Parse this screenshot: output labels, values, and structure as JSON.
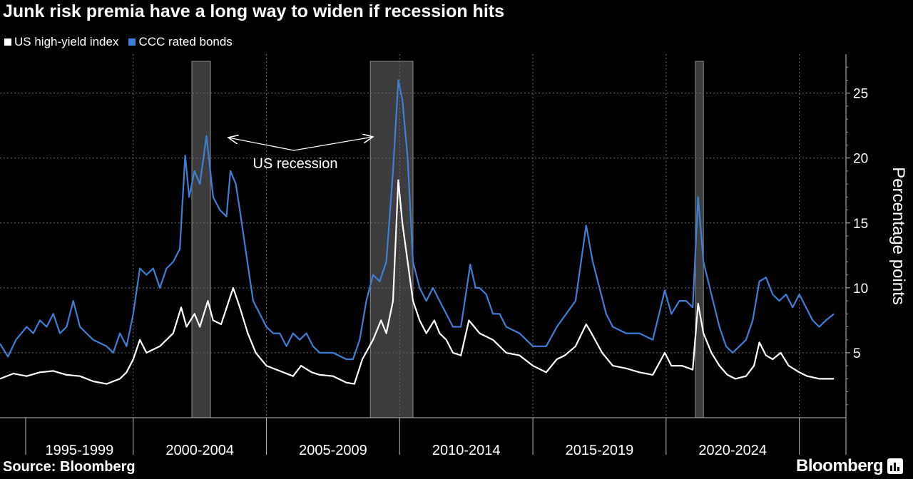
{
  "header": {
    "title": "Junk risk premia have a long way to widen if recession hits"
  },
  "footer": {
    "source": "Source: Bloomberg",
    "brand": "Bloomberg"
  },
  "colors": {
    "background": "#000000",
    "hy": "#ffffff",
    "ccc": "#3d7fd6",
    "recession": "#3c3c3c",
    "grid": "#6a6a6a"
  },
  "chart_data": {
    "type": "line",
    "title": "Junk risk premia have a long way to widen if recession hits",
    "ylabel": "Percentage points",
    "ylim": [
      0,
      28
    ],
    "yticks": [
      5,
      10,
      15,
      20,
      25
    ],
    "xlim": [
      1994.0,
      2025.75
    ],
    "x_tick_labels": [
      "1995-1999",
      "2000-2004",
      "2005-2009",
      "2010-2014",
      "2015-2019",
      "2020-2024"
    ],
    "grid": true,
    "legend": "top-left",
    "recessions": [
      {
        "start": 2001.2,
        "end": 2001.9
      },
      {
        "start": 2007.9,
        "end": 2009.5
      },
      {
        "start": 2020.1,
        "end": 2020.4
      }
    ],
    "annotation": "US recession",
    "series": [
      {
        "name": "US high-yield index",
        "color": "#ffffff",
        "points": [
          [
            1994.0,
            3.0
          ],
          [
            1994.5,
            3.4
          ],
          [
            1995.0,
            3.2
          ],
          [
            1995.5,
            3.5
          ],
          [
            1996.0,
            3.6
          ],
          [
            1996.5,
            3.3
          ],
          [
            1997.0,
            3.2
          ],
          [
            1997.5,
            2.8
          ],
          [
            1998.0,
            2.6
          ],
          [
            1998.5,
            3.0
          ],
          [
            1998.75,
            3.5
          ],
          [
            1999.0,
            4.5
          ],
          [
            1999.25,
            6.0
          ],
          [
            1999.5,
            5.0
          ],
          [
            2000.0,
            5.5
          ],
          [
            2000.5,
            6.5
          ],
          [
            2000.8,
            8.5
          ],
          [
            2001.0,
            7.0
          ],
          [
            2001.3,
            8.0
          ],
          [
            2001.5,
            7.0
          ],
          [
            2001.8,
            9.0
          ],
          [
            2002.0,
            7.5
          ],
          [
            2002.3,
            7.2
          ],
          [
            2002.75,
            10.0
          ],
          [
            2003.0,
            8.5
          ],
          [
            2003.3,
            6.5
          ],
          [
            2003.6,
            5.0
          ],
          [
            2004.0,
            4.0
          ],
          [
            2004.5,
            3.6
          ],
          [
            2005.0,
            3.2
          ],
          [
            2005.3,
            4.0
          ],
          [
            2005.7,
            3.5
          ],
          [
            2006.0,
            3.3
          ],
          [
            2006.5,
            3.2
          ],
          [
            2007.0,
            2.7
          ],
          [
            2007.3,
            2.6
          ],
          [
            2007.6,
            4.5
          ],
          [
            2008.0,
            6.0
          ],
          [
            2008.3,
            7.5
          ],
          [
            2008.5,
            6.5
          ],
          [
            2008.75,
            9.0
          ],
          [
            2008.95,
            18.3
          ],
          [
            2009.1,
            15.0
          ],
          [
            2009.3,
            12.0
          ],
          [
            2009.5,
            9.0
          ],
          [
            2009.75,
            7.5
          ],
          [
            2010.0,
            6.5
          ],
          [
            2010.3,
            7.5
          ],
          [
            2010.5,
            6.5
          ],
          [
            2010.75,
            6.0
          ],
          [
            2011.0,
            5.0
          ],
          [
            2011.3,
            4.8
          ],
          [
            2011.6,
            7.5
          ],
          [
            2011.8,
            7.0
          ],
          [
            2012.0,
            6.5
          ],
          [
            2012.5,
            6.0
          ],
          [
            2013.0,
            5.0
          ],
          [
            2013.5,
            4.8
          ],
          [
            2014.0,
            4.0
          ],
          [
            2014.5,
            3.5
          ],
          [
            2014.9,
            4.5
          ],
          [
            2015.2,
            4.8
          ],
          [
            2015.6,
            5.5
          ],
          [
            2016.0,
            7.2
          ],
          [
            2016.2,
            6.5
          ],
          [
            2016.6,
            5.0
          ],
          [
            2017.0,
            4.0
          ],
          [
            2017.5,
            3.8
          ],
          [
            2018.0,
            3.5
          ],
          [
            2018.5,
            3.3
          ],
          [
            2018.95,
            5.0
          ],
          [
            2019.2,
            4.0
          ],
          [
            2019.6,
            4.0
          ],
          [
            2020.0,
            3.7
          ],
          [
            2020.2,
            8.8
          ],
          [
            2020.4,
            6.5
          ],
          [
            2020.7,
            5.0
          ],
          [
            2021.0,
            4.0
          ],
          [
            2021.3,
            3.3
          ],
          [
            2021.6,
            3.0
          ],
          [
            2022.0,
            3.2
          ],
          [
            2022.3,
            4.0
          ],
          [
            2022.5,
            5.8
          ],
          [
            2022.75,
            4.8
          ],
          [
            2023.0,
            4.5
          ],
          [
            2023.3,
            5.0
          ],
          [
            2023.6,
            4.0
          ],
          [
            2024.0,
            3.5
          ],
          [
            2024.3,
            3.2
          ],
          [
            2024.75,
            3.0
          ],
          [
            2025.3,
            3.0
          ]
        ]
      },
      {
        "name": "CCC rated bonds",
        "color": "#3d7fd6",
        "points": [
          [
            1994.0,
            5.7
          ],
          [
            1994.3,
            4.7
          ],
          [
            1994.6,
            6.0
          ],
          [
            1995.0,
            7.0
          ],
          [
            1995.25,
            6.5
          ],
          [
            1995.5,
            7.5
          ],
          [
            1995.75,
            7.0
          ],
          [
            1996.0,
            8.0
          ],
          [
            1996.25,
            6.5
          ],
          [
            1996.5,
            7.0
          ],
          [
            1996.75,
            9.0
          ],
          [
            1997.0,
            7.0
          ],
          [
            1997.25,
            6.5
          ],
          [
            1997.5,
            6.0
          ],
          [
            1998.0,
            5.5
          ],
          [
            1998.25,
            5.0
          ],
          [
            1998.5,
            6.5
          ],
          [
            1998.75,
            5.5
          ],
          [
            1999.0,
            8.0
          ],
          [
            1999.25,
            11.5
          ],
          [
            1999.5,
            11.0
          ],
          [
            1999.75,
            11.5
          ],
          [
            2000.0,
            10.0
          ],
          [
            2000.25,
            11.5
          ],
          [
            2000.5,
            12.0
          ],
          [
            2000.75,
            13.0
          ],
          [
            2000.95,
            20.2
          ],
          [
            2001.1,
            17.0
          ],
          [
            2001.3,
            19.0
          ],
          [
            2001.5,
            18.0
          ],
          [
            2001.75,
            21.7
          ],
          [
            2002.0,
            17.0
          ],
          [
            2002.25,
            16.0
          ],
          [
            2002.5,
            15.5
          ],
          [
            2002.65,
            19.0
          ],
          [
            2002.85,
            18.0
          ],
          [
            2003.0,
            16.0
          ],
          [
            2003.25,
            12.5
          ],
          [
            2003.5,
            9.0
          ],
          [
            2003.75,
            8.0
          ],
          [
            2004.0,
            7.0
          ],
          [
            2004.25,
            6.5
          ],
          [
            2004.5,
            6.5
          ],
          [
            2004.75,
            5.5
          ],
          [
            2005.0,
            6.5
          ],
          [
            2005.25,
            6.0
          ],
          [
            2005.5,
            6.5
          ],
          [
            2005.75,
            5.5
          ],
          [
            2006.0,
            5.0
          ],
          [
            2006.5,
            5.0
          ],
          [
            2007.0,
            4.5
          ],
          [
            2007.25,
            4.5
          ],
          [
            2007.5,
            6.0
          ],
          [
            2007.75,
            9.0
          ],
          [
            2008.0,
            11.0
          ],
          [
            2008.25,
            10.5
          ],
          [
            2008.5,
            12.0
          ],
          [
            2008.75,
            19.0
          ],
          [
            2008.95,
            26.0
          ],
          [
            2009.1,
            24.5
          ],
          [
            2009.3,
            20.0
          ],
          [
            2009.5,
            12.0
          ],
          [
            2009.75,
            10.0
          ],
          [
            2010.0,
            9.0
          ],
          [
            2010.25,
            10.0
          ],
          [
            2010.5,
            9.0
          ],
          [
            2010.75,
            8.0
          ],
          [
            2011.0,
            7.0
          ],
          [
            2011.3,
            7.0
          ],
          [
            2011.65,
            11.8
          ],
          [
            2011.85,
            10.0
          ],
          [
            2012.0,
            10.0
          ],
          [
            2012.25,
            9.5
          ],
          [
            2012.5,
            8.0
          ],
          [
            2012.75,
            8.0
          ],
          [
            2013.0,
            7.0
          ],
          [
            2013.5,
            6.5
          ],
          [
            2014.0,
            5.5
          ],
          [
            2014.5,
            5.5
          ],
          [
            2014.9,
            7.0
          ],
          [
            2015.25,
            8.0
          ],
          [
            2015.6,
            9.0
          ],
          [
            2016.0,
            14.8
          ],
          [
            2016.25,
            12.0
          ],
          [
            2016.5,
            10.0
          ],
          [
            2016.75,
            8.0
          ],
          [
            2017.0,
            7.0
          ],
          [
            2017.5,
            6.5
          ],
          [
            2018.0,
            6.5
          ],
          [
            2018.5,
            6.0
          ],
          [
            2018.95,
            9.8
          ],
          [
            2019.2,
            8.0
          ],
          [
            2019.5,
            9.0
          ],
          [
            2019.75,
            9.0
          ],
          [
            2020.0,
            8.5
          ],
          [
            2020.2,
            17.0
          ],
          [
            2020.4,
            12.0
          ],
          [
            2020.7,
            9.5
          ],
          [
            2021.0,
            7.0
          ],
          [
            2021.25,
            5.5
          ],
          [
            2021.5,
            5.0
          ],
          [
            2021.75,
            5.5
          ],
          [
            2022.0,
            6.0
          ],
          [
            2022.25,
            7.5
          ],
          [
            2022.5,
            10.5
          ],
          [
            2022.75,
            10.8
          ],
          [
            2023.0,
            9.5
          ],
          [
            2023.25,
            9.0
          ],
          [
            2023.5,
            9.5
          ],
          [
            2023.75,
            8.5
          ],
          [
            2024.0,
            9.5
          ],
          [
            2024.25,
            8.5
          ],
          [
            2024.5,
            7.5
          ],
          [
            2024.75,
            7.0
          ],
          [
            2025.0,
            7.5
          ],
          [
            2025.3,
            8.0
          ]
        ]
      }
    ]
  }
}
